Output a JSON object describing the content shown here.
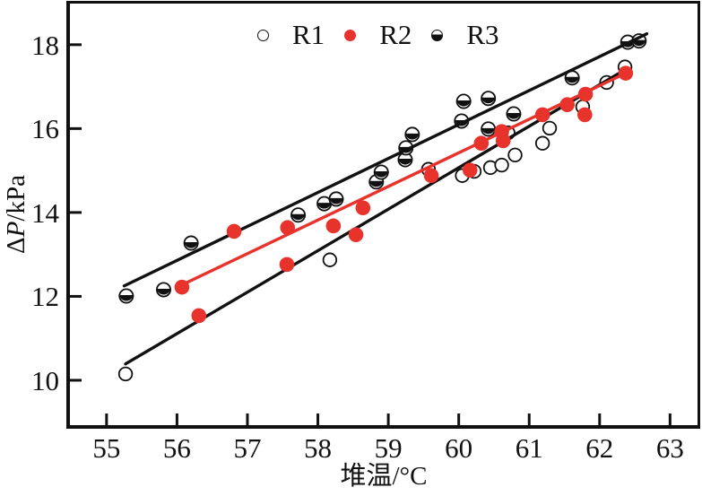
{
  "colors": {
    "axis": "#111111",
    "r1": "#111111",
    "r2": "#e8322c",
    "r3": "#111111",
    "background": "#ffffff"
  },
  "axes": {
    "xlabel": "堆温/°C",
    "ylabel": "ΔP/kPa",
    "ylabel_parts": {
      "prefix": "Δ",
      "var": "P",
      "suffix": "/kPa"
    }
  },
  "chart_data": {
    "type": "scatter",
    "title": "",
    "xlabel": "堆温/°C",
    "ylabel": "ΔP/kPa",
    "xlim": [
      54.48,
      63.39
    ],
    "ylim": [
      8.93,
      18.98
    ],
    "x_ticks": [
      55,
      56,
      57,
      58,
      59,
      60,
      61,
      62,
      63
    ],
    "y_ticks": [
      10,
      12,
      14,
      16,
      18
    ],
    "grid": false,
    "legend_position": "inside-top-center",
    "series": [
      {
        "name": "R1",
        "marker": "open-circle",
        "color": "#111111",
        "points": [
          [
            55.27,
            10.15
          ],
          [
            58.17,
            12.87
          ],
          [
            59.57,
            15.03
          ],
          [
            60.05,
            14.88
          ],
          [
            60.22,
            14.98
          ],
          [
            60.45,
            15.07
          ],
          [
            60.61,
            15.13
          ],
          [
            60.7,
            15.9
          ],
          [
            60.8,
            15.37
          ],
          [
            61.19,
            15.65
          ],
          [
            61.29,
            16.01
          ],
          [
            61.76,
            16.52
          ],
          [
            62.1,
            17.1
          ],
          [
            62.36,
            17.47
          ]
        ],
        "fit_line": {
          "x1": 55.27,
          "y1": 10.39,
          "x2": 62.4,
          "y2": 17.44,
          "color": "#111111"
        }
      },
      {
        "name": "R2",
        "marker": "filled-circle",
        "color": "#e8322c",
        "points": [
          [
            56.07,
            12.22
          ],
          [
            56.31,
            11.54
          ],
          [
            56.81,
            13.55
          ],
          [
            57.56,
            12.76
          ],
          [
            57.57,
            13.64
          ],
          [
            58.22,
            13.68
          ],
          [
            58.54,
            13.47
          ],
          [
            58.64,
            14.11
          ],
          [
            59.61,
            14.88
          ],
          [
            60.16,
            15.01
          ],
          [
            60.32,
            15.65
          ],
          [
            60.61,
            15.93
          ],
          [
            60.63,
            15.71
          ],
          [
            61.19,
            16.33
          ],
          [
            61.54,
            16.57
          ],
          [
            61.79,
            16.33
          ],
          [
            61.8,
            16.82
          ],
          [
            62.37,
            17.32
          ]
        ],
        "fit_line": {
          "x1": 56.09,
          "y1": 12.29,
          "x2": 62.37,
          "y2": 17.32,
          "color": "#e8322c"
        }
      },
      {
        "name": "R3",
        "marker": "half-filled-circle",
        "color": "#111111",
        "points": [
          [
            55.28,
            12.01
          ],
          [
            55.81,
            12.16
          ],
          [
            56.2,
            13.27
          ],
          [
            57.72,
            13.94
          ],
          [
            58.09,
            14.21
          ],
          [
            58.26,
            14.32
          ],
          [
            58.83,
            14.73
          ],
          [
            58.9,
            14.96
          ],
          [
            59.24,
            15.26
          ],
          [
            59.25,
            15.54
          ],
          [
            59.34,
            15.86
          ],
          [
            60.04,
            16.18
          ],
          [
            60.07,
            16.65
          ],
          [
            60.42,
            15.99
          ],
          [
            60.42,
            16.72
          ],
          [
            60.78,
            16.35
          ],
          [
            61.61,
            17.21
          ],
          [
            62.4,
            18.06
          ],
          [
            62.56,
            18.09
          ]
        ],
        "fit_line": {
          "x1": 55.25,
          "y1": 12.25,
          "x2": 62.67,
          "y2": 18.26,
          "color": "#111111"
        }
      }
    ]
  }
}
